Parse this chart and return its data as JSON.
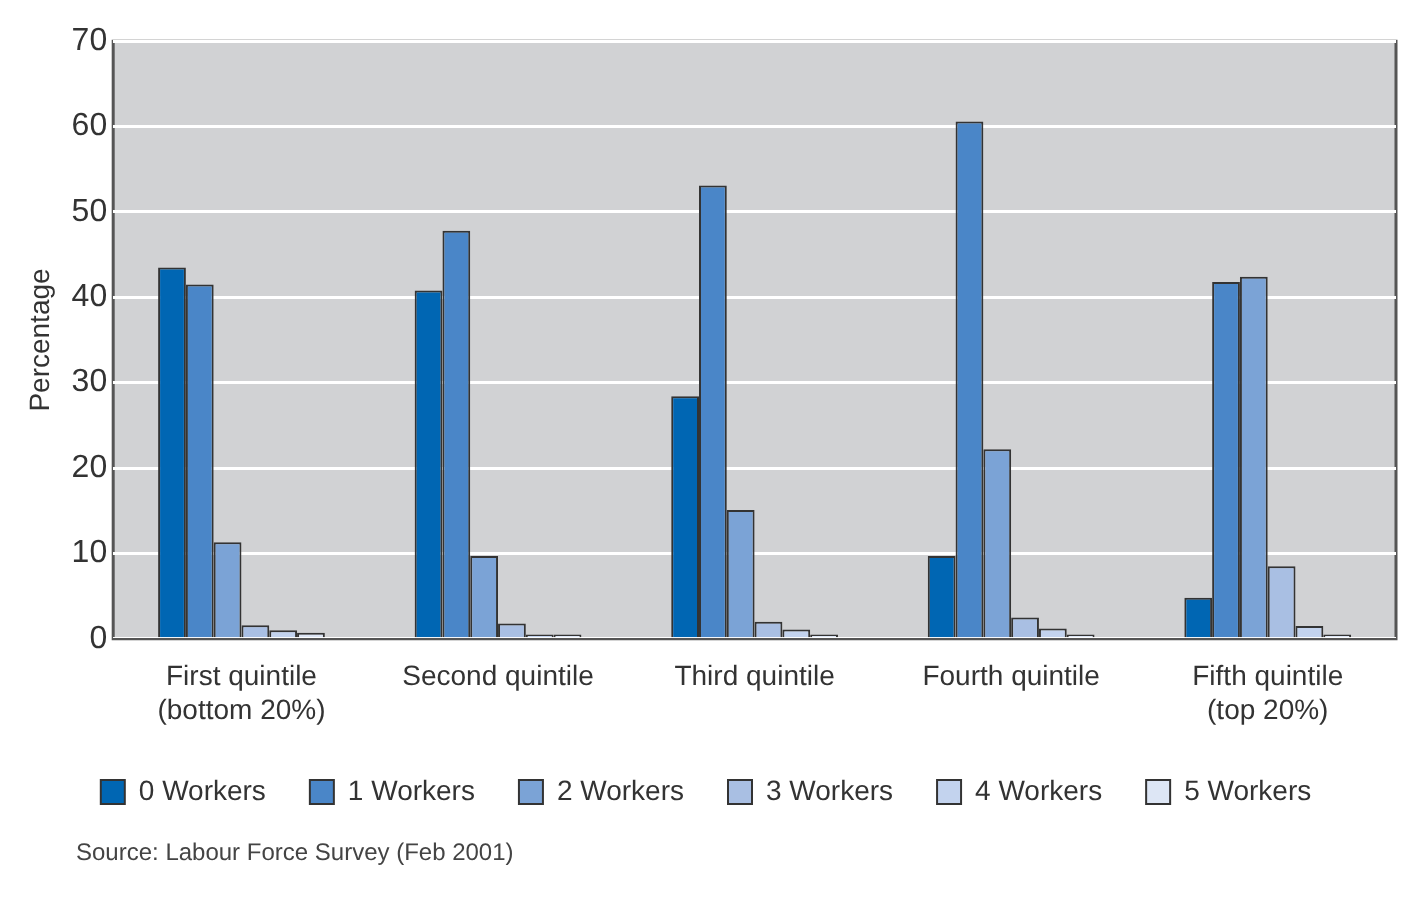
{
  "chart_data": {
    "type": "bar",
    "ylabel": "Percentage",
    "categories": [
      "First quintile (bottom 20%)",
      "Second quintile",
      "Third quintile",
      "Fourth quintile",
      "Fifth quintile (top 20%)"
    ],
    "series": [
      {
        "name": "0 Workers",
        "color": "#0066b3",
        "values": [
          43.5,
          40.8,
          28.4,
          9.7,
          4.8
        ]
      },
      {
        "name": "1 Workers",
        "color": "#4a86c8",
        "values": [
          41.5,
          47.8,
          53.1,
          60.6,
          41.8
        ]
      },
      {
        "name": "2 Workers",
        "color": "#7ba3d6",
        "values": [
          11.3,
          9.7,
          15.1,
          22.2,
          42.4
        ]
      },
      {
        "name": "3 Workers",
        "color": "#a9bfe3",
        "values": [
          1.6,
          1.8,
          2.0,
          2.5,
          8.5
        ]
      },
      {
        "name": "4 Workers",
        "color": "#c3d3ee",
        "values": [
          1.0,
          0.5,
          1.1,
          1.2,
          1.5
        ]
      },
      {
        "name": "5 Workers",
        "color": "#dde6f5",
        "values": [
          0.7,
          0.5,
          0.5,
          0.5,
          0.5
        ]
      }
    ],
    "ylim": [
      0,
      70
    ],
    "yticks": [
      0,
      10,
      20,
      30,
      40,
      50,
      60,
      70
    ],
    "grid": "y",
    "legend": "bottom",
    "annotations": [
      "Source: Labour Force Survey (Feb 2001)"
    ]
  }
}
